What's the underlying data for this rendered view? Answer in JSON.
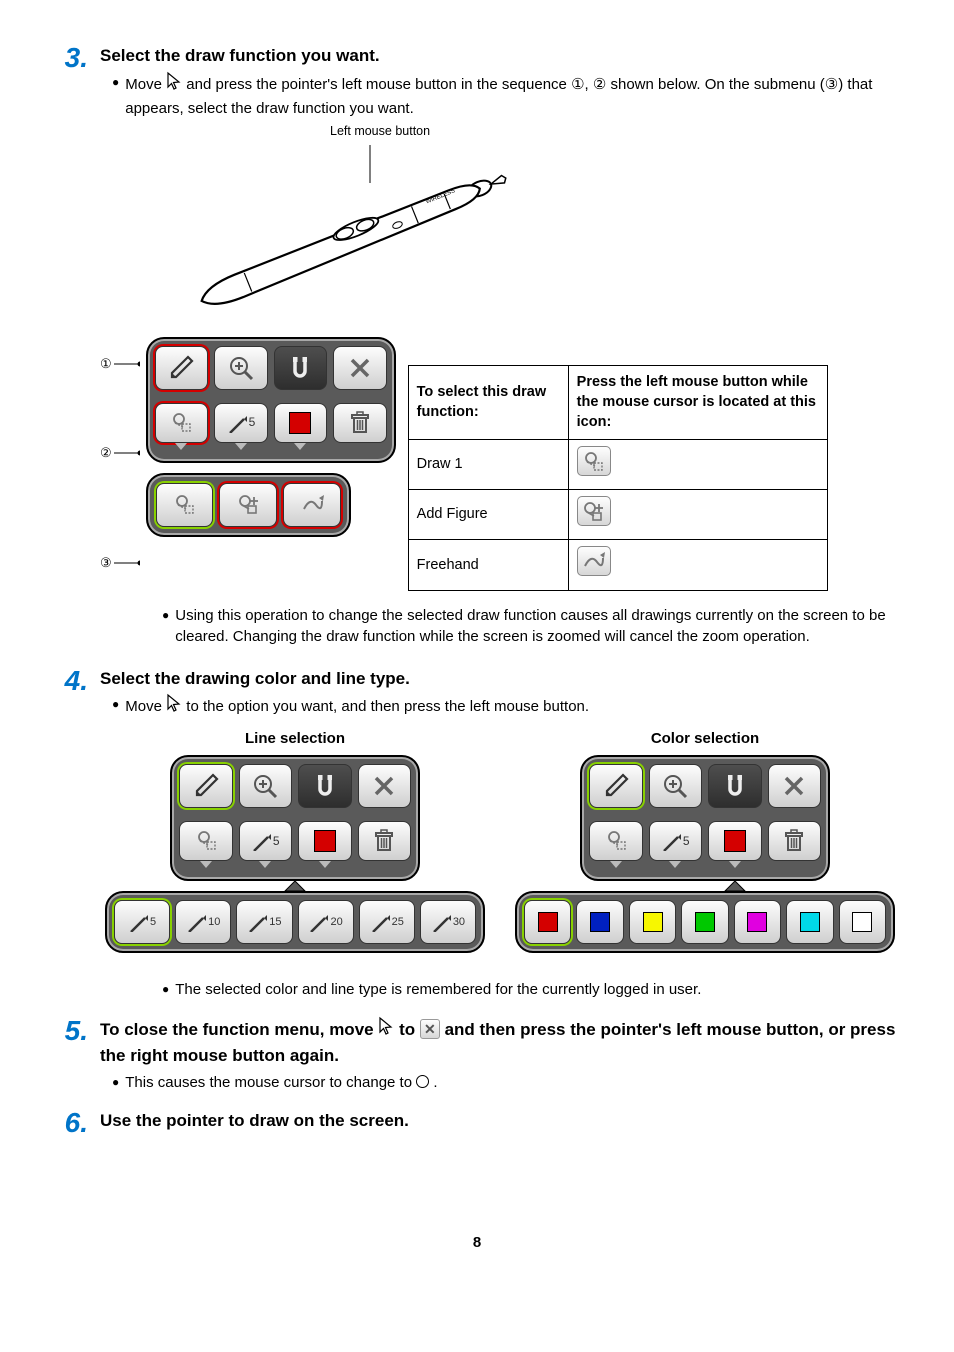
{
  "page_number": "8",
  "steps": {
    "s3": {
      "num": "3.",
      "title": "Select the draw function you want.",
      "bullet1_pre": "Move ",
      "bullet1_mid": " and press the pointer's left mouse button in the sequence ",
      "bullet1_c1": "①",
      "bullet1_c12": ", ",
      "bullet1_c2": "②",
      "bullet1_post": " shown below. On the submenu (",
      "bullet1_c3": "③",
      "bullet1_end": ") that appears, select the draw function you want.",
      "pen_caption": "Left mouse button",
      "ref1": "①",
      "ref2": "②",
      "ref3": "③",
      "table": {
        "h1": "To select this draw function:",
        "h2": "Press the left mouse button while the mouse cursor is located at this icon:",
        "r1": "Draw 1",
        "r2": "Add Figure",
        "r3": "Freehand"
      },
      "bullet2": "Using this operation to change the selected draw function causes all drawings currently on the screen to be cleared. Changing the draw function while the screen is zoomed will cancel the zoom operation."
    },
    "s4": {
      "num": "4.",
      "title": "Select the drawing color and line type.",
      "bullet1_pre": "Move ",
      "bullet1_post": " to the option you want, and then press the left mouse button.",
      "line_label": "Line selection",
      "color_label": "Color selection",
      "line_opts": [
        "5",
        "10",
        "15",
        "20",
        "25",
        "30"
      ],
      "line5": "5",
      "colors": [
        "#d40000",
        "#0020c0",
        "#f7f700",
        "#00c800",
        "#e000e0",
        "#00d8e8",
        "#ffffff"
      ],
      "bullet2": "The selected color and line type is remembered for the currently logged in user."
    },
    "s5": {
      "num": "5.",
      "title_pre": "To close the function menu, move ",
      "title_mid": " to ",
      "title_post": " and then press the pointer's left mouse button, or press the right mouse button again.",
      "bullet1_pre": "This causes the mouse cursor to change to ",
      "bullet1_post": "."
    },
    "s6": {
      "num": "6.",
      "title": "Use the pointer to draw on the screen."
    }
  },
  "colors": {
    "accent": "#0074c8",
    "toolbar_bg": "#5a5a5a",
    "highlight_red": "#d40000",
    "highlight_green": "#88d100",
    "swatch_red": "#d40000"
  }
}
